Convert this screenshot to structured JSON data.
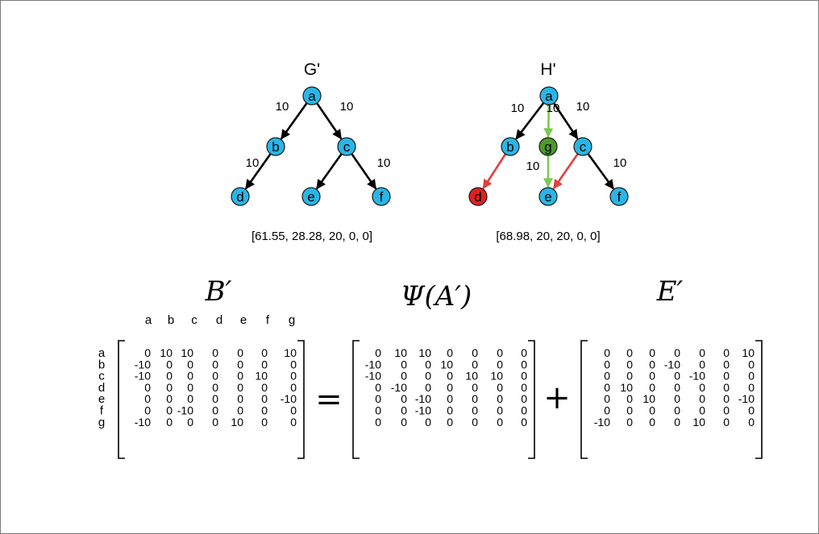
{
  "colors": {
    "node": "#29b6e6",
    "node_red": "#e02020",
    "node_green": "#4e9a2c",
    "edge": "#000000",
    "edge_red": "#e04040",
    "edge_green": "#7ec850"
  },
  "graph_g": {
    "title": "G'",
    "nodes": [
      {
        "id": "a",
        "label": "a",
        "color": "node"
      },
      {
        "id": "b",
        "label": "b",
        "color": "node"
      },
      {
        "id": "c",
        "label": "c",
        "color": "node"
      },
      {
        "id": "d",
        "label": "d",
        "color": "node"
      },
      {
        "id": "e",
        "label": "e",
        "color": "node"
      },
      {
        "id": "f",
        "label": "f",
        "color": "node"
      }
    ],
    "edges": [
      {
        "from": "a",
        "to": "b",
        "weight": "10",
        "color": "edge"
      },
      {
        "from": "a",
        "to": "c",
        "weight": "10",
        "color": "edge"
      },
      {
        "from": "b",
        "to": "d",
        "weight": "10",
        "color": "edge"
      },
      {
        "from": "c",
        "to": "e",
        "weight": "",
        "color": "edge"
      },
      {
        "from": "c",
        "to": "f",
        "weight": "10",
        "color": "edge"
      }
    ],
    "vector": "[61.55, 28.28, 20, 0, 0]"
  },
  "graph_h": {
    "title": "H'",
    "nodes": [
      {
        "id": "a",
        "label": "a",
        "color": "node"
      },
      {
        "id": "b",
        "label": "b",
        "color": "node"
      },
      {
        "id": "g",
        "label": "g",
        "color": "node_green"
      },
      {
        "id": "c",
        "label": "c",
        "color": "node"
      },
      {
        "id": "d",
        "label": "d",
        "color": "node_red"
      },
      {
        "id": "e",
        "label": "e",
        "color": "node"
      },
      {
        "id": "f",
        "label": "f",
        "color": "node"
      }
    ],
    "edges": [
      {
        "from": "a",
        "to": "b",
        "weight": "10",
        "color": "edge"
      },
      {
        "from": "a",
        "to": "c",
        "weight": "10",
        "color": "edge"
      },
      {
        "from": "a",
        "to": "g",
        "weight": "10",
        "color": "edge_green"
      },
      {
        "from": "g",
        "to": "e",
        "weight": "10",
        "color": "edge_green"
      },
      {
        "from": "b",
        "to": "d",
        "weight": "",
        "color": "edge_red"
      },
      {
        "from": "c",
        "to": "e",
        "weight": "",
        "color": "edge_red"
      },
      {
        "from": "c",
        "to": "f",
        "weight": "10",
        "color": "edge"
      }
    ],
    "vector": "[68.98, 20, 20, 0, 0]"
  },
  "equation": {
    "titles": [
      "B′",
      "Ψ(A′)",
      "E′"
    ],
    "equals": "=",
    "plus": "+",
    "labels": [
      "a",
      "b",
      "c",
      "d",
      "e",
      "f",
      "g"
    ],
    "B": [
      [
        "0",
        "10",
        "10",
        "0",
        "0",
        "0",
        "10"
      ],
      [
        "-10",
        "0",
        "0",
        "0",
        "0",
        "0",
        "0"
      ],
      [
        "-10",
        "0",
        "0",
        "0",
        "0",
        "10",
        "0"
      ],
      [
        "0",
        "0",
        "0",
        "0",
        "0",
        "0",
        "0"
      ],
      [
        "0",
        "0",
        "0",
        "0",
        "0",
        "0",
        "-10"
      ],
      [
        "0",
        "0",
        "-10",
        "0",
        "0",
        "0",
        "0"
      ],
      [
        "-10",
        "0",
        "0",
        "0",
        "10",
        "0",
        "0"
      ]
    ],
    "A": [
      [
        "0",
        "10",
        "10",
        "0",
        "0",
        "0",
        "0"
      ],
      [
        "-10",
        "0",
        "0",
        "10",
        "0",
        "0",
        "0"
      ],
      [
        "-10",
        "0",
        "0",
        "0",
        "10",
        "10",
        "0"
      ],
      [
        "0",
        "-10",
        "0",
        "0",
        "0",
        "0",
        "0"
      ],
      [
        "0",
        "0",
        "-10",
        "0",
        "0",
        "0",
        "0"
      ],
      [
        "0",
        "0",
        "-10",
        "0",
        "0",
        "0",
        "0"
      ],
      [
        "0",
        "0",
        "0",
        "0",
        "0",
        "0",
        "0"
      ]
    ],
    "E": [
      [
        "0",
        "0",
        "0",
        "0",
        "0",
        "0",
        "10"
      ],
      [
        "0",
        "0",
        "0",
        "-10",
        "0",
        "0",
        "0"
      ],
      [
        "0",
        "0",
        "0",
        "0",
        "-10",
        "0",
        "0"
      ],
      [
        "0",
        "10",
        "0",
        "0",
        "0",
        "0",
        "0"
      ],
      [
        "0",
        "0",
        "10",
        "0",
        "0",
        "0",
        "-10"
      ],
      [
        "0",
        "0",
        "0",
        "0",
        "0",
        "0",
        "0"
      ],
      [
        "-10",
        "0",
        "0",
        "0",
        "10",
        "0",
        "0"
      ]
    ]
  }
}
